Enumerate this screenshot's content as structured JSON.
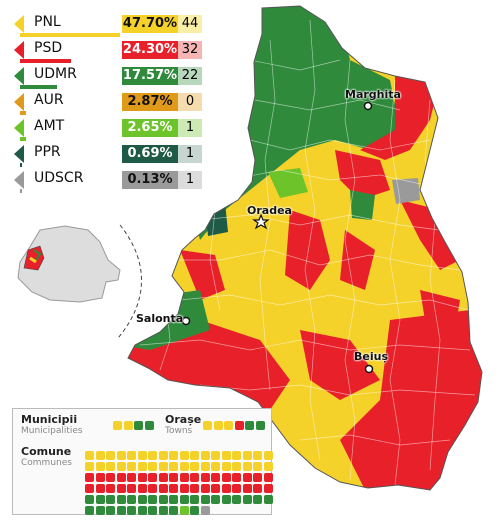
{
  "colors": {
    "PNL": "#f5d22a",
    "PSD": "#e8202a",
    "UDMR": "#2f8a3c",
    "AUR": "#e09a1a",
    "AMT": "#6cc42a",
    "PPR": "#1e5a45",
    "UDSCR": "#9a9a9a"
  },
  "parties": [
    {
      "name": "PNL",
      "pct": "47.70%",
      "seats": "44",
      "color": "#f5d22a",
      "light": "#fbeea6",
      "fraction": 0.477
    },
    {
      "name": "PSD",
      "pct": "24.30%",
      "seats": "32",
      "color": "#e8202a",
      "light": "#f5b5b5",
      "fraction": 0.243
    },
    {
      "name": "UDMR",
      "pct": "17.57%",
      "seats": "22",
      "color": "#2f8a3c",
      "light": "#b8d8bc",
      "fraction": 0.1757
    },
    {
      "name": "AUR",
      "pct": "2.87%",
      "seats": "0",
      "color": "#e09a1a",
      "light": "#f5dcae",
      "fraction": 0.0287
    },
    {
      "name": "AMT",
      "pct": "2.65%",
      "seats": "1",
      "color": "#6cc42a",
      "light": "#cdeab4",
      "fraction": 0.0265
    },
    {
      "name": "PPR",
      "pct": "0.69%",
      "seats": "1",
      "color": "#1e5a45",
      "light": "#c8d6d1",
      "fraction": 0.0069
    },
    {
      "name": "UDSCR",
      "pct": "0.13%",
      "seats": "1",
      "color": "#9a9a9a",
      "light": "#dcdcdc",
      "fraction": 0.0013
    }
  ],
  "cities": {
    "marghita": "Marghita",
    "oradea": "Oradea",
    "salonta": "Salonta",
    "beius": "Beiuș"
  },
  "key": {
    "municipalities_label": "Municipii",
    "municipalities_sub": "Municipalities",
    "towns_label": "Orașe",
    "towns_sub": "Towns",
    "communes_label": "Comune",
    "communes_sub": "Communes",
    "municipalities": [
      "PNL",
      "PNL",
      "UDMR",
      "UDMR"
    ],
    "towns": [
      "PNL",
      "PNL",
      "PNL",
      "PSD",
      "UDMR",
      "UDMR"
    ],
    "communes": [
      "PNL",
      "PNL",
      "PNL",
      "PNL",
      "PNL",
      "PNL",
      "PNL",
      "PNL",
      "PNL",
      "PNL",
      "PNL",
      "PNL",
      "PNL",
      "PNL",
      "PNL",
      "PNL",
      "PNL",
      "PNL",
      "PNL",
      "PNL",
      "PNL",
      "PNL",
      "PNL",
      "PNL",
      "PNL",
      "PNL",
      "PNL",
      "PNL",
      "PNL",
      "PNL",
      "PNL",
      "PNL",
      "PNL",
      "PNL",
      "PNL",
      "PNL",
      "PSD",
      "PSD",
      "PSD",
      "PSD",
      "PSD",
      "PSD",
      "PSD",
      "PSD",
      "PSD",
      "PSD",
      "PSD",
      "PSD",
      "PSD",
      "PSD",
      "PSD",
      "PSD",
      "PSD",
      "PSD",
      "PSD",
      "PSD",
      "PSD",
      "PSD",
      "PSD",
      "PSD",
      "PSD",
      "PSD",
      "PSD",
      "PSD",
      "PSD",
      "PSD",
      "PSD",
      "PSD",
      "PSD",
      "PSD",
      "PSD",
      "PSD",
      "UDMR",
      "UDMR",
      "UDMR",
      "UDMR",
      "UDMR",
      "UDMR",
      "UDMR",
      "UDMR",
      "UDMR",
      "UDMR",
      "UDMR",
      "UDMR",
      "UDMR",
      "UDMR",
      "UDMR",
      "UDMR",
      "UDMR",
      "UDMR",
      "UDMR",
      "UDMR",
      "UDMR",
      "UDMR",
      "UDMR",
      "UDMR",
      "UDMR",
      "UDMR",
      "UDMR",
      "AMT",
      "UDMR",
      "UDSCR"
    ]
  }
}
